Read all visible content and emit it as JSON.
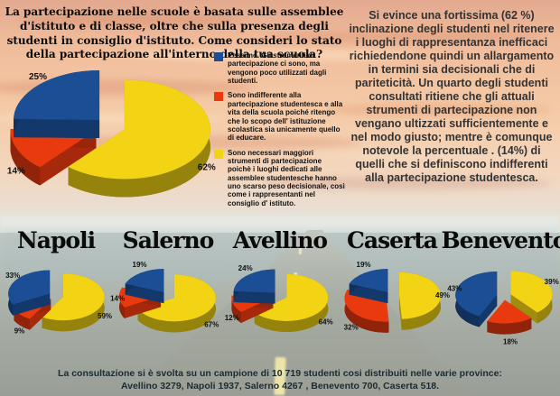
{
  "header": {
    "question": "La partecipazione nelle scuole è basata sulle assemblee d'istituto e di classe, oltre che sulla presenza degli studenti in consiglio d'istituto. Come consideri lo stato della partecipazione all'interno della tua scuola?",
    "commentary": "Si evince una fortissima (62 %) inclinazione degli studenti nel ritenere i luoghi di rappresentanza inefficaci richiedendone quindi un allargamento in termini sia decisionali che di pariteticità. Un quarto degli studenti consultati ritiene che gli attuali strumenti di partecipazione non vengano ultizzati sufficientemente e nel modo giusto; mentre è comunque notevole la percentuale . (14%) di quelli che si definiscono indifferenti alla partecipazione studentesca."
  },
  "chart_data": {
    "type": "pie",
    "style": "3d-exploded",
    "values_unit": "%",
    "legend_position": "center",
    "categories": [
      {
        "label": "Pessimo. Gli strumenti di partecipazione ci sono, ma vengono poco utilizzati dagli studenti.",
        "color": "#1b4e94"
      },
      {
        "label": "Sono indifferente alla partecipazione studentesca e alla vita della scuola poiché ritengo che lo scopo dell' istituzione scolastica sia unicamente quello di educare.",
        "color": "#e8390f"
      },
      {
        "label": "Sono necessari maggiori strumenti di partecipazione poichè i luoghi dedicati alle assemblee studentesche hanno uno scarso peso decisionale, così come i rappresentanti nel consiglio d' istituto.",
        "color": "#f2d414"
      }
    ],
    "pies": [
      {
        "id": "overall",
        "title": "",
        "values": [
          25,
          14,
          62
        ]
      },
      {
        "id": "napoli",
        "title": "Napoli",
        "values": [
          33,
          9,
          59
        ]
      },
      {
        "id": "salerno",
        "title": "Salerno",
        "values": [
          19,
          14,
          67
        ]
      },
      {
        "id": "avellino",
        "title": "Avellino",
        "values": [
          24,
          12,
          64
        ]
      },
      {
        "id": "caserta",
        "title": "Caserta",
        "values": [
          19,
          32,
          49
        ]
      },
      {
        "id": "benevento",
        "title": "Benevento",
        "values": [
          43,
          18,
          39
        ]
      }
    ]
  },
  "footer": {
    "line1": "La consultazione si è svolta su un campione di 10 719 studenti cosi distribuiti nelle varie province:",
    "line2": "Avellino 3279, Napoli 1937, Salerno 4267 , Benevento 700, Caserta 518."
  }
}
